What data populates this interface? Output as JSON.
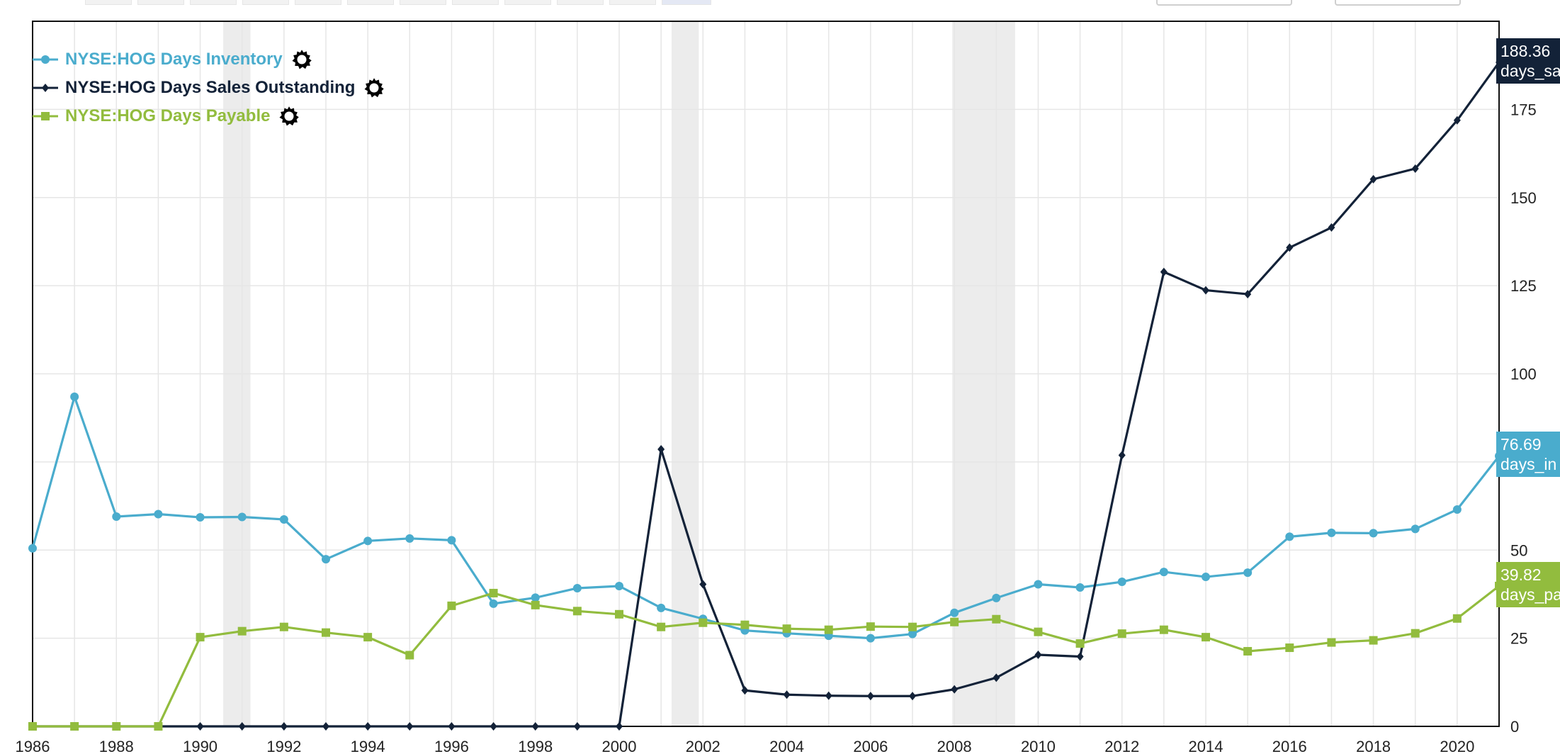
{
  "chart_data": {
    "type": "line",
    "x": [
      1986,
      1987,
      1988,
      1989,
      1990,
      1991,
      1992,
      1993,
      1994,
      1995,
      1996,
      1997,
      1998,
      1999,
      2000,
      2001,
      2002,
      2003,
      2004,
      2005,
      2006,
      2007,
      2008,
      2009,
      2010,
      2011,
      2012,
      2013,
      2014,
      2015,
      2016,
      2017,
      2018,
      2019,
      2020,
      2021
    ],
    "series": [
      {
        "name": "NYSE:HOG Days Inventory",
        "color": "#4aaccd",
        "marker": "circle",
        "values": [
          50.5,
          93.5,
          59.5,
          60.2,
          59.3,
          59.4,
          58.7,
          47.4,
          52.6,
          53.3,
          52.8,
          34.8,
          36.5,
          39.2,
          39.8,
          33.6,
          30.5,
          27.2,
          26.4,
          25.7,
          25.0,
          26.2,
          32.2,
          36.4,
          40.3,
          39.4,
          41.0,
          43.8,
          42.4,
          43.6,
          53.8,
          54.9,
          54.8,
          56.0,
          61.5,
          76.69
        ]
      },
      {
        "name": "NYSE:HOG Days Sales Outstanding",
        "color": "#132238",
        "marker": "diamond",
        "values": [
          0,
          0,
          0,
          0,
          0,
          0,
          0,
          0,
          0,
          0,
          0,
          0,
          0,
          0,
          0,
          78.6,
          40.3,
          10.2,
          9.0,
          8.7,
          8.6,
          8.6,
          10.5,
          13.8,
          20.3,
          19.8,
          76.9,
          128.9,
          123.7,
          122.6,
          135.8,
          141.5,
          155.2,
          158.2,
          171.9,
          188.36
        ]
      },
      {
        "name": "NYSE:HOG Days Payable",
        "color": "#92bc3e",
        "marker": "square",
        "values": [
          0,
          0,
          0,
          0,
          25.3,
          27.0,
          28.2,
          26.6,
          25.3,
          20.2,
          34.2,
          37.8,
          34.4,
          32.7,
          31.8,
          28.2,
          29.4,
          28.8,
          27.7,
          27.4,
          28.3,
          28.2,
          29.6,
          30.4,
          26.8,
          23.5,
          26.3,
          27.4,
          25.3,
          21.3,
          22.3,
          23.8,
          24.4,
          26.4,
          30.6,
          39.82
        ]
      }
    ],
    "recessions": [
      [
        1990.55,
        1991.2
      ],
      [
        2001.25,
        2001.9
      ],
      [
        2007.95,
        2009.45
      ]
    ],
    "end_labels": [
      {
        "value": "188.36",
        "label": "days_sa",
        "color": "#132238"
      },
      {
        "value": "76.69",
        "label": "days_in",
        "color": "#4aaccd"
      },
      {
        "value": "39.82",
        "label": "days_pa",
        "color": "#92bc3e"
      }
    ],
    "xlim": [
      1986,
      2021
    ],
    "ylim": [
      0,
      200
    ],
    "x_ticks": [
      1986,
      1988,
      1990,
      1992,
      1994,
      1996,
      1998,
      2000,
      2002,
      2004,
      2006,
      2008,
      2010,
      2012,
      2014,
      2016,
      2018,
      2020
    ],
    "y_ticks": [
      0,
      25,
      50,
      100,
      125,
      150,
      175
    ],
    "y_tick_labels": [
      "0",
      "25",
      "50",
      "100",
      "125",
      "150",
      "175"
    ],
    "grid": true,
    "legend_position": "top-left",
    "title": "",
    "xlabel": "",
    "ylabel": ""
  },
  "legend_icon": "gear-icon"
}
